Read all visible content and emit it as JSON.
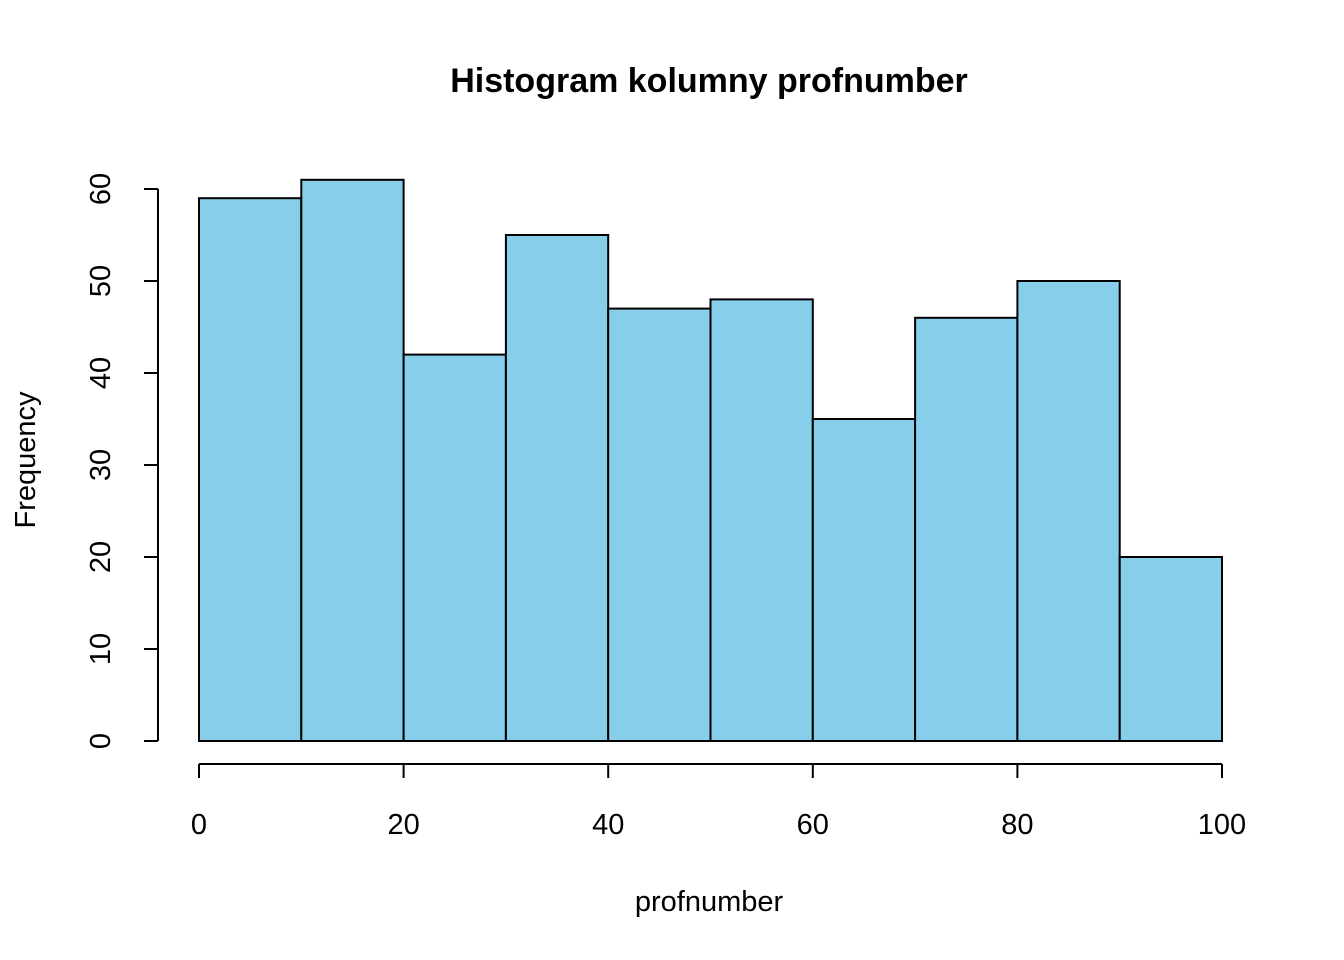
{
  "chart_data": {
    "type": "bar",
    "title": "Histogram kolumny profnumber",
    "xlabel": "profnumber",
    "ylabel": "Frequency",
    "bins": [
      {
        "start": 0,
        "end": 10,
        "count": 59
      },
      {
        "start": 10,
        "end": 20,
        "count": 61
      },
      {
        "start": 20,
        "end": 30,
        "count": 42
      },
      {
        "start": 30,
        "end": 40,
        "count": 55
      },
      {
        "start": 40,
        "end": 50,
        "count": 47
      },
      {
        "start": 50,
        "end": 60,
        "count": 48
      },
      {
        "start": 60,
        "end": 70,
        "count": 35
      },
      {
        "start": 70,
        "end": 80,
        "count": 46
      },
      {
        "start": 80,
        "end": 90,
        "count": 50
      },
      {
        "start": 90,
        "end": 100,
        "count": 20
      }
    ],
    "xlim": [
      0,
      100
    ],
    "ylim": [
      0,
      60
    ],
    "x_ticks": [
      "0",
      "20",
      "40",
      "60",
      "80",
      "100"
    ],
    "y_ticks": [
      "0",
      "10",
      "20",
      "30",
      "40",
      "50",
      "60"
    ],
    "bar_color": "#87CEEB",
    "border_color": "#000000",
    "grid": false,
    "legend": "none"
  }
}
